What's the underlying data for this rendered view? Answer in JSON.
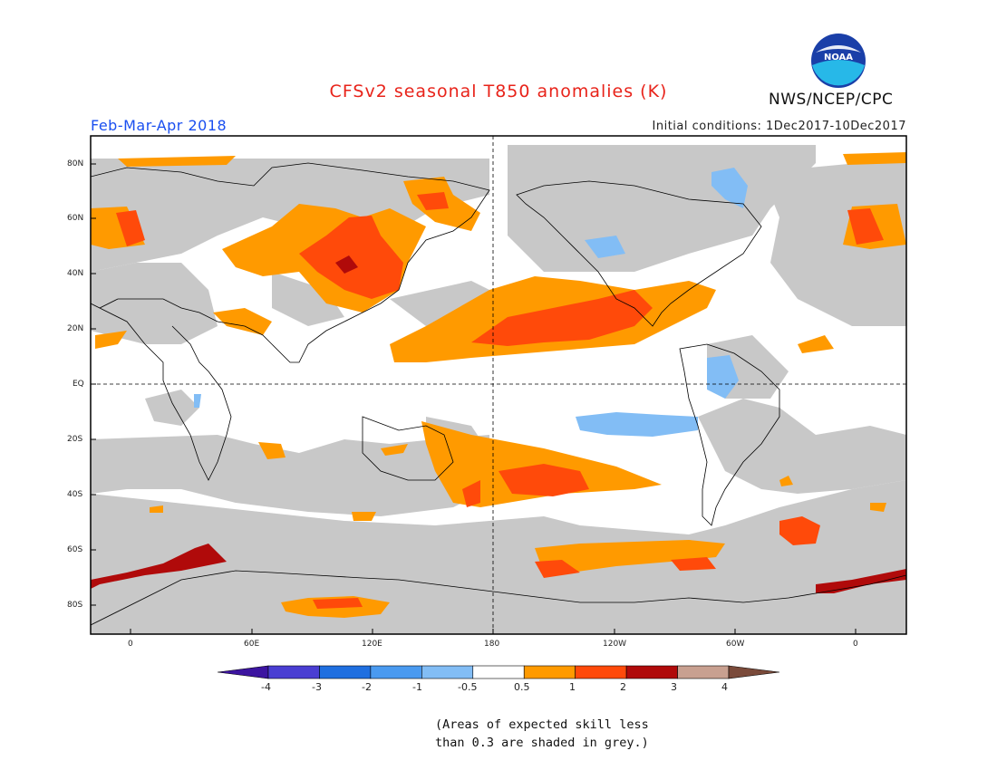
{
  "header": {
    "title": "CFSv2 seasonal T850 anomalies (K)",
    "org": "NWS/NCEP/CPC",
    "season": "Feb-Mar-Apr 2018",
    "initial_conditions": "Initial conditions: 1Dec2017-10Dec2017"
  },
  "logo": {
    "text": "NOAA"
  },
  "map": {
    "lat_labels": [
      "80N",
      "60N",
      "40N",
      "20N",
      "EQ",
      "20S",
      "40S",
      "60S",
      "80S"
    ],
    "lon_labels": [
      "0",
      "60E",
      "120E",
      "180",
      "120W",
      "60W",
      "0"
    ]
  },
  "colorbar": {
    "labels": [
      "-4",
      "-3",
      "-2",
      "-1",
      "-0.5",
      "0.5",
      "1",
      "2",
      "3",
      "4"
    ],
    "colors": [
      "#3c14a0",
      "#4a3ed2",
      "#1f6fe0",
      "#4a9af0",
      "#82bdf5",
      "#ffffff",
      "#ff9a00",
      "#ff4a0a",
      "#b00a0a",
      "#c8a090",
      "#7a4a3a"
    ]
  },
  "footnote": {
    "line1": "(Areas of expected skill less",
    "line2": "than 0.3 are shaded in grey.)"
  }
}
